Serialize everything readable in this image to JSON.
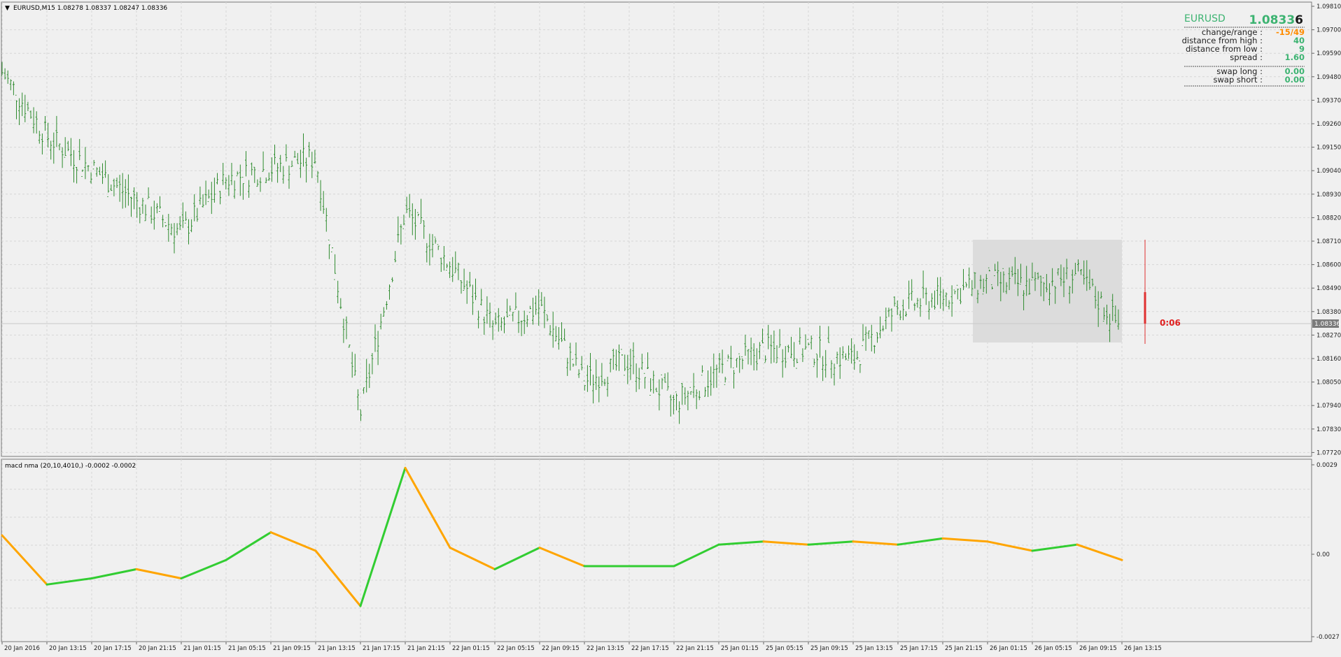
{
  "main_chart": {
    "header": "EURUSD,M15  1.08278 1.08337 1.08247 1.08336",
    "price_axis": [
      "1.09810",
      "1.09700",
      "1.09590",
      "1.09480",
      "1.09370",
      "1.09260",
      "1.09150",
      "1.09040",
      "1.08930",
      "1.08820",
      "1.08710",
      "1.08600",
      "1.08490",
      "1.08380",
      "1.08270",
      "1.08160",
      "1.08050",
      "1.07940",
      "1.07830",
      "1.07720"
    ],
    "current_price_label": "1.08336",
    "timer": "0:06"
  },
  "info_panel": {
    "symbol": "EURUSD",
    "price_main": "1.0833",
    "price_last_digit": "6",
    "rows": [
      {
        "label": "change/range :",
        "value": "-15/49",
        "color": "#ff8c00"
      },
      {
        "label": "distance from high :",
        "value": "40",
        "color": "#3cb371"
      },
      {
        "label": "distance from low :",
        "value": "9",
        "color": "#3cb371"
      },
      {
        "label": "spread :",
        "value": "1.60",
        "color": "#3cb371"
      }
    ],
    "swap_rows": [
      {
        "label": "swap long :",
        "value": "0.00"
      },
      {
        "label": "swap short :",
        "value": "0.00"
      }
    ]
  },
  "indicator": {
    "header": "macd nma (20,10,4010,) -0.0002 -0.0002",
    "axis": [
      "0.0029",
      "0.00",
      "-0.0027"
    ]
  },
  "time_axis": [
    "20 Jan 2016",
    "20 Jan 13:15",
    "20 Jan 17:15",
    "20 Jan 21:15",
    "21 Jan 01:15",
    "21 Jan 05:15",
    "21 Jan 09:15",
    "21 Jan 13:15",
    "21 Jan 17:15",
    "21 Jan 21:15",
    "22 Jan 01:15",
    "22 Jan 05:15",
    "22 Jan 09:15",
    "22 Jan 13:15",
    "22 Jan 17:15",
    "22 Jan 21:15",
    "25 Jan 01:15",
    "25 Jan 05:15",
    "25 Jan 09:15",
    "25 Jan 13:15",
    "25 Jan 17:15",
    "25 Jan 21:15",
    "26 Jan 01:15",
    "26 Jan 05:15",
    "26 Jan 09:15",
    "26 Jan 13:15"
  ],
  "chart_data": [
    {
      "type": "line",
      "title": "EURUSD,M15  1.08278 1.08337 1.08247 1.08336",
      "x": [
        "20 Jan 2016",
        "20 Jan 13:15",
        "20 Jan 17:15",
        "20 Jan 21:15",
        "21 Jan 01:15",
        "21 Jan 05:15",
        "21 Jan 09:15",
        "21 Jan 13:15",
        "21 Jan 17:15",
        "21 Jan 21:15",
        "22 Jan 01:15",
        "22 Jan 05:15",
        "22 Jan 09:15",
        "22 Jan 13:15",
        "22 Jan 17:15",
        "22 Jan 21:15",
        "25 Jan 01:15",
        "25 Jan 05:15",
        "25 Jan 09:15",
        "25 Jan 13:15",
        "25 Jan 17:15",
        "25 Jan 21:15",
        "26 Jan 01:15",
        "26 Jan 05:15",
        "26 Jan 09:15",
        "26 Jan 13:15"
      ],
      "series": [
        {
          "values": [
            1.095,
            1.092,
            1.0905,
            1.089,
            1.0875,
            1.09,
            1.0905,
            1.091,
            1.079,
            1.0885,
            1.086,
            1.083,
            1.084,
            1.0805,
            1.0815,
            1.0795,
            1.081,
            1.082,
            1.082,
            1.0815,
            1.084,
            1.0845,
            1.0852,
            1.085,
            1.0855,
            1.083
          ]
        }
      ],
      "ylim": [
        1.0772,
        1.0981
      ],
      "grid": true
    },
    {
      "type": "line",
      "title": "macd nma (20,10,4010,) -0.0002 -0.0002",
      "x": [
        "20 Jan 2016",
        "20 Jan 13:15",
        "20 Jan 17:15",
        "20 Jan 21:15",
        "21 Jan 01:15",
        "21 Jan 05:15",
        "21 Jan 09:15",
        "21 Jan 13:15",
        "21 Jan 17:15",
        "21 Jan 21:15",
        "22 Jan 01:15",
        "22 Jan 05:15",
        "22 Jan 09:15",
        "22 Jan 13:15",
        "22 Jan 17:15",
        "22 Jan 21:15",
        "25 Jan 01:15",
        "25 Jan 05:15",
        "25 Jan 09:15",
        "25 Jan 13:15",
        "25 Jan 17:15",
        "25 Jan 21:15",
        "26 Jan 01:15",
        "26 Jan 05:15",
        "26 Jan 09:15",
        "26 Jan 13:15"
      ],
      "series": [
        {
          "values": [
            0.0006,
            -0.001,
            -0.0008,
            -0.0005,
            -0.0008,
            -0.0002,
            0.0007,
            0.0001,
            -0.0017,
            0.0028,
            0.0002,
            -0.0005,
            0.0002,
            -0.0004,
            -0.0004,
            -0.0004,
            0.0003,
            0.0004,
            0.0003,
            0.0004,
            0.0003,
            0.0005,
            0.0004,
            0.0001,
            0.0003,
            -0.0002
          ]
        }
      ],
      "ylim": [
        -0.0027,
        0.0029
      ],
      "colors": {
        "up": "#32cd32",
        "down": "#ffa500"
      }
    }
  ]
}
